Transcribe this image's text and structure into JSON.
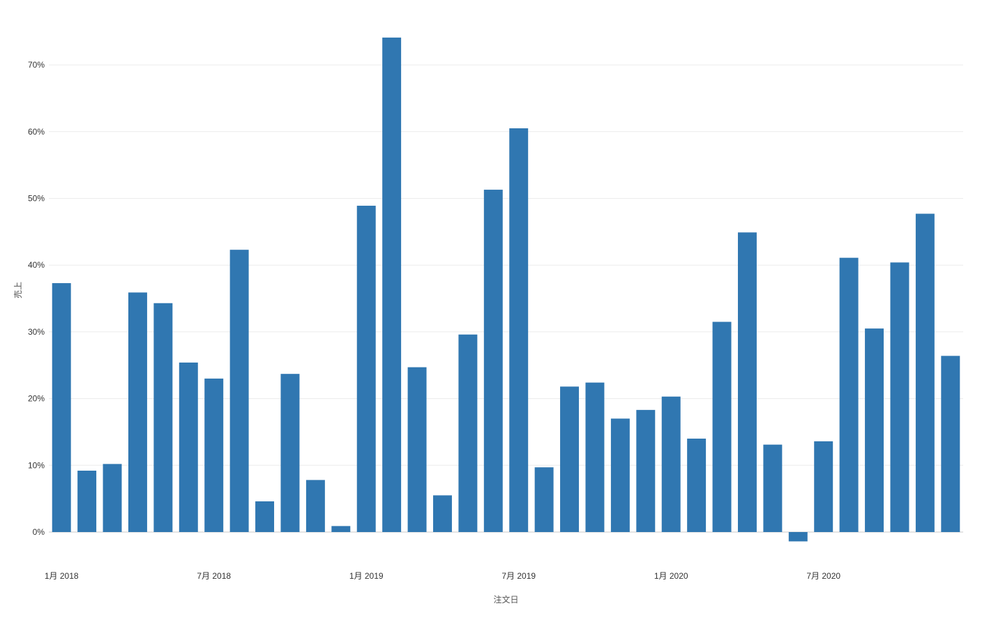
{
  "chart_data": {
    "type": "bar",
    "xlabel": "注文日",
    "ylabel": "売上",
    "ylim": [
      -3,
      74
    ],
    "y_ticks": [
      0,
      10,
      20,
      30,
      40,
      50,
      60,
      70
    ],
    "y_tick_labels": [
      "0%",
      "10%",
      "20%",
      "30%",
      "40%",
      "50%",
      "60%",
      "70%"
    ],
    "x_tick_labels": [
      {
        "index": 0,
        "label": "1月 2018"
      },
      {
        "index": 6,
        "label": "7月 2018"
      },
      {
        "index": 12,
        "label": "1月 2019"
      },
      {
        "index": 18,
        "label": "7月 2019"
      },
      {
        "index": 24,
        "label": "1月 2020"
      },
      {
        "index": 30,
        "label": "7月 2020"
      }
    ],
    "categories": [
      "2018-01",
      "2018-02",
      "2018-03",
      "2018-04",
      "2018-05",
      "2018-06",
      "2018-07",
      "2018-08",
      "2018-09",
      "2018-10",
      "2018-11",
      "2018-12",
      "2019-01",
      "2019-02",
      "2019-03",
      "2019-04",
      "2019-05",
      "2019-06",
      "2019-07",
      "2019-08",
      "2019-09",
      "2019-10",
      "2019-11",
      "2019-12",
      "2020-01",
      "2020-02",
      "2020-03",
      "2020-04",
      "2020-05",
      "2020-06",
      "2020-07",
      "2020-08",
      "2020-09",
      "2020-10",
      "2020-11",
      "2020-12"
    ],
    "values": [
      37.3,
      9.2,
      10.2,
      35.9,
      34.3,
      25.4,
      23.0,
      42.3,
      4.6,
      23.7,
      7.8,
      0.9,
      48.9,
      74.1,
      24.7,
      5.5,
      29.6,
      51.3,
      60.5,
      9.7,
      21.8,
      22.4,
      17.0,
      18.3,
      20.3,
      14.0,
      31.5,
      44.9,
      13.1,
      -1.4,
      13.6,
      41.1,
      30.5,
      40.4,
      47.7,
      26.4
    ],
    "color": "#3077b1",
    "grid": true,
    "legend": "none"
  }
}
